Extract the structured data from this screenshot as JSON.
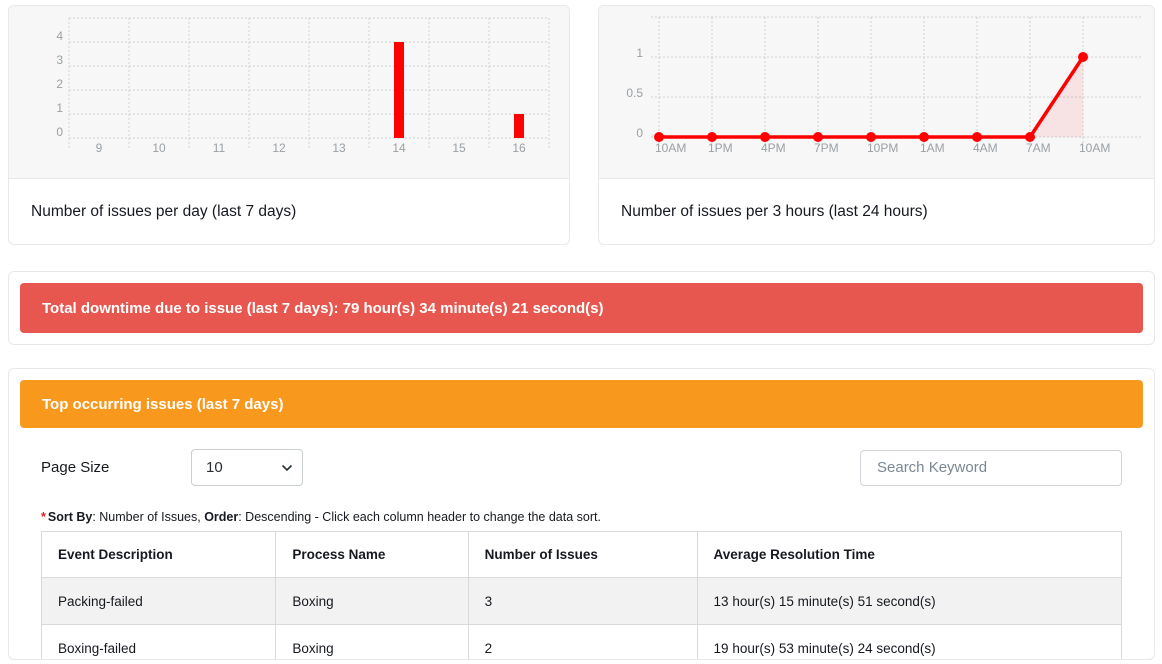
{
  "chart_data": [
    {
      "type": "bar",
      "title": "Number of issues per day (last 7 days)",
      "categories": [
        "9",
        "10",
        "11",
        "12",
        "13",
        "14",
        "15",
        "16"
      ],
      "values": [
        0,
        0,
        0,
        0,
        0,
        4,
        0,
        1
      ],
      "yticks": [
        0,
        1,
        2,
        3,
        4
      ],
      "ylim": [
        0,
        5
      ],
      "xlabel": "",
      "ylabel": "",
      "grid": true,
      "legend": false,
      "color": "#ff0000"
    },
    {
      "type": "line",
      "title": "Number of issues per 3 hours (last 24 hours)",
      "categories": [
        "10AM",
        "1PM",
        "4PM",
        "7PM",
        "10PM",
        "1AM",
        "4AM",
        "7AM",
        "10AM"
      ],
      "values": [
        0,
        0,
        0,
        0,
        0,
        0,
        0,
        0,
        1
      ],
      "yticks": [
        0,
        0.5,
        1
      ],
      "ylim": [
        0,
        1.5
      ],
      "xlabel": "",
      "ylabel": "",
      "grid": true,
      "legend": false,
      "area": true,
      "color": "#ff0000"
    }
  ],
  "downtime_banner": {
    "text": "Total downtime due to issue (last 7 days): 79 hour(s) 34 minute(s) 21 second(s)",
    "color": "#e8574f"
  },
  "issues_panel": {
    "header": {
      "text": "Top occurring issues (last 7 days)",
      "color": "#f8991d"
    },
    "page_size": {
      "label": "Page Size",
      "value": "10"
    },
    "search": {
      "placeholder": "Search Keyword"
    },
    "sort_note": {
      "asterisk": "*",
      "sort_by_label": "Sort By",
      "sort_by_value": ": Number of Issues, ",
      "order_label": "Order",
      "order_value": ": Descending - Click each column header to change the data sort."
    },
    "table": {
      "columns": [
        "Event Description",
        "Process Name",
        "Number of Issues",
        "Average Resolution Time"
      ],
      "col_widths": [
        "21.7%",
        "17.8%",
        "21.2%",
        "39.3%"
      ],
      "rows": [
        [
          "Packing-failed",
          "Boxing",
          "3",
          "13 hour(s) 15 minute(s) 51 second(s)"
        ],
        [
          "Boxing-failed",
          "Boxing",
          "2",
          "19 hour(s) 53 minute(s) 24 second(s)"
        ]
      ]
    }
  }
}
